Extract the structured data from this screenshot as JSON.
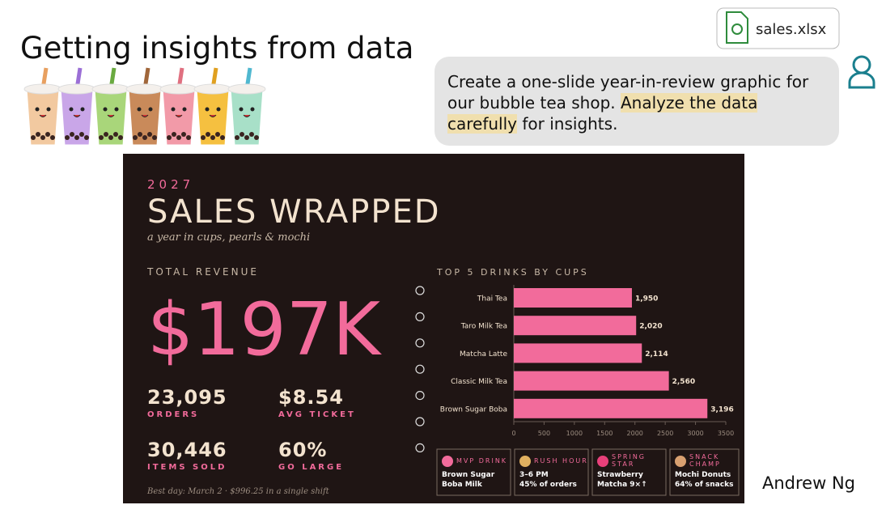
{
  "header": {
    "title": "Getting insights from data"
  },
  "file_chip": {
    "label": "sales.xlsx"
  },
  "chat": {
    "parts": [
      "Create a one-slide year-in-review graphic for our bubble tea shop. ",
      "Analyze the data carefully",
      " for insights."
    ]
  },
  "author": "Andrew Ng",
  "slide": {
    "year": "2027",
    "title": "SALES WRAPPED",
    "subtitle": "a year in cups, pearls & mochi",
    "revenue_label": "TOTAL REVENUE",
    "revenue": "$197K",
    "stats": [
      {
        "value": "23,095",
        "label": "ORDERS"
      },
      {
        "value": "$8.54",
        "label": "AVG TICKET"
      },
      {
        "value": "30,446",
        "label": "ITEMS SOLD"
      },
      {
        "value": "60%",
        "label": "GO LARGE"
      }
    ],
    "footnote": "Best day: March 2 · $996.25 in a single shift",
    "cards": [
      {
        "label": [
          "MVP DRINK"
        ],
        "lines": [
          "Brown Sugar",
          "Boba Milk"
        ]
      },
      {
        "label": [
          "RUSH HOUR"
        ],
        "lines": [
          "3–6 PM",
          "45% of orders"
        ]
      },
      {
        "label": [
          "SPRING",
          "STAR"
        ],
        "lines": [
          "Strawberry",
          "Matcha 9×↑"
        ]
      },
      {
        "label": [
          "SNACK",
          "CHAMP"
        ],
        "lines": [
          "Mochi Donuts",
          "64% of snacks"
        ]
      }
    ]
  },
  "chart_data": {
    "type": "bar",
    "orientation": "horizontal",
    "title": "TOP 5 DRINKS BY CUPS",
    "categories": [
      "Thai Tea",
      "Taro Milk Tea",
      "Matcha Latte",
      "Classic Milk Tea",
      "Brown Sugar Boba"
    ],
    "values": [
      1950,
      2020,
      2114,
      2560,
      3196
    ],
    "value_labels": [
      "1,950",
      "2,020",
      "2,114",
      "2,560",
      "3,196"
    ],
    "color": "#f26b9b",
    "xlim": [
      0,
      3500
    ],
    "xticks": [
      0,
      500,
      1000,
      1500,
      2000,
      2500,
      3000,
      3500
    ],
    "grid": false
  }
}
